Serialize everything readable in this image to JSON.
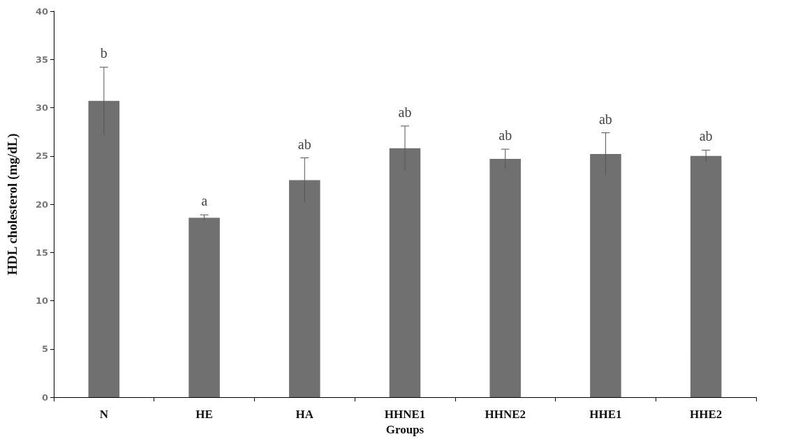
{
  "chart_data": {
    "type": "bar",
    "xlabel": "Groups",
    "ylabel": "HDL cholesterol (mg/dL)",
    "categories": [
      "N",
      "HE",
      "HA",
      "HHNE1",
      "HHNE2",
      "HHE1",
      "HHE2"
    ],
    "values": [
      30.7,
      18.6,
      22.5,
      25.8,
      24.7,
      25.2,
      25.0
    ],
    "errors": [
      3.5,
      0.3,
      2.3,
      2.3,
      1.0,
      2.2,
      0.6
    ],
    "color": "#707070",
    "ylim": [
      0,
      40
    ],
    "yticks": [
      0,
      5,
      10,
      15,
      20,
      25,
      30,
      35,
      40
    ],
    "grid": false,
    "annotations": [
      "b",
      "a",
      "ab",
      "ab",
      "ab",
      "ab",
      "ab"
    ]
  }
}
